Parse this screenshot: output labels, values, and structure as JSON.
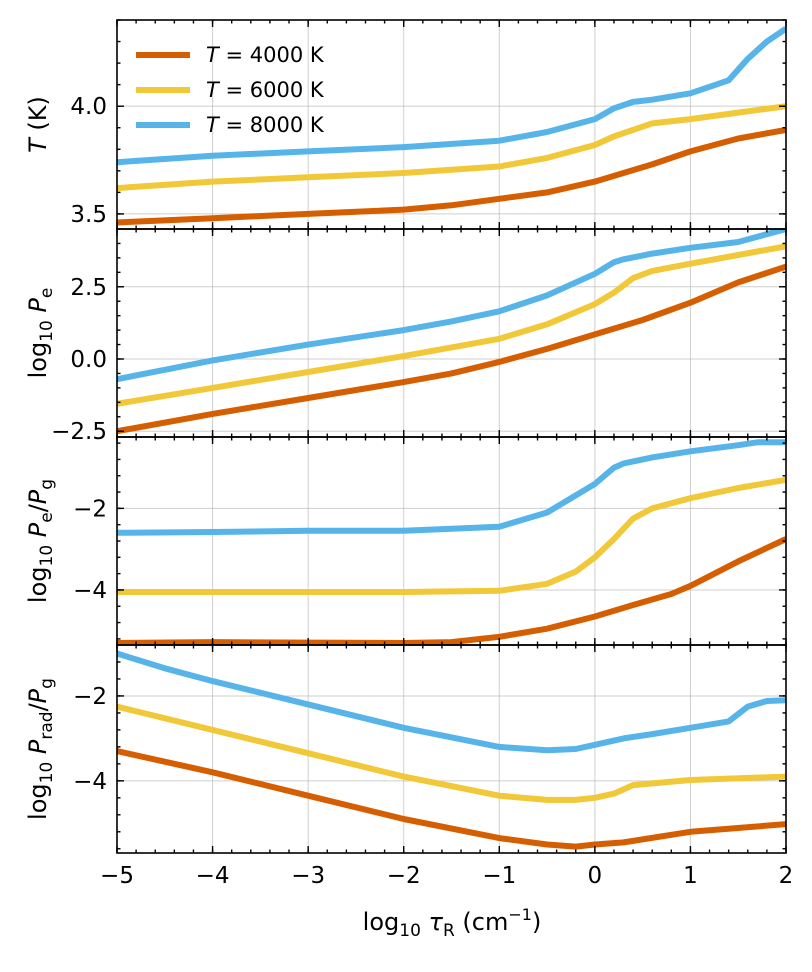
{
  "chart_data": {
    "type": "line",
    "x_label": {
      "prefix": "log",
      "sub": "10",
      "sym": "τ",
      "symsub": "R",
      "unit_pre": "(cm",
      "unit_sup": "−1",
      "unit_post": ")"
    },
    "xlim": [
      -5,
      2
    ],
    "xticks": [
      -5,
      -4,
      -3,
      -2,
      -1,
      0,
      1,
      2
    ],
    "xtick_labels": [
      "−5",
      "−4",
      "−3",
      "−2",
      "−1",
      "0",
      "1",
      "2"
    ],
    "grid": true,
    "legend": {
      "placement": "top-left",
      "entries": [
        {
          "var": "T",
          "text": " = 4000 K",
          "color": "#d55e00"
        },
        {
          "var": "T",
          "text": " = 6000 K",
          "color": "#f0c838"
        },
        {
          "var": "T",
          "text": " = 8000 K",
          "color": "#56b4e9"
        }
      ]
    },
    "panels": [
      {
        "ylabel": {
          "parts": [
            {
              "t": "T",
              "i": true
            },
            {
              "t": " (K)"
            }
          ]
        },
        "ylim": [
          3.43,
          4.4
        ],
        "yticks": [
          3.5,
          4.0
        ],
        "ytick_labels": [
          "3.5",
          "4.0"
        ],
        "series": [
          {
            "color": "#d55e00",
            "x": [
              -5,
              -4,
              -3,
              -2,
              -1.5,
              -1,
              -0.5,
              0,
              0.3,
              0.6,
              1,
              1.5,
              2
            ],
            "y": [
              3.46,
              3.48,
              3.5,
              3.52,
              3.54,
              3.57,
              3.6,
              3.65,
              3.69,
              3.73,
              3.79,
              3.85,
              3.89
            ]
          },
          {
            "color": "#f0c838",
            "x": [
              -5,
              -4,
              -3,
              -2,
              -1,
              -0.5,
              0,
              0.2,
              0.4,
              0.6,
              1,
              1.5,
              2
            ],
            "y": [
              3.62,
              3.65,
              3.67,
              3.69,
              3.72,
              3.76,
              3.82,
              3.86,
              3.89,
              3.92,
              3.94,
              3.97,
              4.0
            ]
          },
          {
            "color": "#56b4e9",
            "x": [
              -5,
              -4,
              -3,
              -2,
              -1,
              -0.5,
              0,
              0.2,
              0.4,
              0.6,
              1,
              1.4,
              1.6,
              1.8,
              2
            ],
            "y": [
              3.74,
              3.77,
              3.79,
              3.81,
              3.84,
              3.88,
              3.94,
              3.99,
              4.02,
              4.03,
              4.06,
              4.12,
              4.22,
              4.3,
              4.36
            ]
          }
        ]
      },
      {
        "ylabel": {
          "parts": [
            {
              "t": "log"
            },
            {
              "t": "10",
              "sub": true
            },
            {
              "t": " "
            },
            {
              "t": "P",
              "i": true
            },
            {
              "t": "e",
              "sub": true
            }
          ]
        },
        "ylim": [
          -2.7,
          4.5
        ],
        "yticks": [
          -2.5,
          0.0,
          2.5
        ],
        "ytick_labels": [
          "−2.5",
          "0.0",
          "2.5"
        ],
        "series": [
          {
            "color": "#d55e00",
            "x": [
              -5,
              -4,
              -3,
              -2,
              -1.5,
              -1,
              -0.5,
              0,
              0.5,
              1,
              1.5,
              2
            ],
            "y": [
              -2.5,
              -1.9,
              -1.35,
              -0.8,
              -0.5,
              -0.1,
              0.35,
              0.85,
              1.35,
              1.95,
              2.65,
              3.2
            ]
          },
          {
            "color": "#f0c838",
            "x": [
              -5,
              -4,
              -3,
              -2,
              -1,
              -0.5,
              0,
              0.2,
              0.4,
              0.6,
              1,
              1.5,
              2
            ],
            "y": [
              -1.55,
              -1.0,
              -0.45,
              0.1,
              0.7,
              1.2,
              1.9,
              2.3,
              2.8,
              3.05,
              3.3,
              3.6,
              3.9
            ]
          },
          {
            "color": "#56b4e9",
            "x": [
              -5,
              -4,
              -3,
              -2,
              -1.5,
              -1,
              -0.5,
              0,
              0.2,
              0.3,
              0.6,
              1,
              1.5,
              2
            ],
            "y": [
              -0.7,
              -0.05,
              0.5,
              1.0,
              1.3,
              1.65,
              2.2,
              2.95,
              3.35,
              3.45,
              3.65,
              3.85,
              4.05,
              4.5
            ]
          }
        ]
      },
      {
        "ylabel": {
          "parts": [
            {
              "t": "log"
            },
            {
              "t": "10",
              "sub": true
            },
            {
              "t": " "
            },
            {
              "t": "P",
              "i": true
            },
            {
              "t": "e",
              "sub": true
            },
            {
              "t": "/"
            },
            {
              "t": "P",
              "i": true
            },
            {
              "t": "g",
              "sub": true
            }
          ]
        },
        "ylim": [
          -5.35,
          -0.25
        ],
        "yticks": [
          -4,
          -2
        ],
        "ytick_labels": [
          "−4",
          "−2"
        ],
        "series": [
          {
            "color": "#d55e00",
            "x": [
              -5,
              -4,
              -3,
              -2,
              -1.5,
              -1,
              -0.5,
              0,
              0.5,
              0.8,
              1,
              1.5,
              2
            ],
            "y": [
              -5.3,
              -5.28,
              -5.29,
              -5.3,
              -5.28,
              -5.15,
              -4.95,
              -4.65,
              -4.3,
              -4.1,
              -3.9,
              -3.3,
              -2.75
            ]
          },
          {
            "color": "#f0c838",
            "x": [
              -5,
              -4,
              -3,
              -2,
              -1,
              -0.5,
              -0.2,
              0,
              0.2,
              0.4,
              0.6,
              1,
              1.5,
              2
            ],
            "y": [
              -4.05,
              -4.05,
              -4.05,
              -4.05,
              -4.02,
              -3.85,
              -3.55,
              -3.2,
              -2.75,
              -2.25,
              -2.0,
              -1.75,
              -1.5,
              -1.3
            ]
          },
          {
            "color": "#56b4e9",
            "x": [
              -5,
              -4,
              -3,
              -2,
              -1,
              -0.5,
              0,
              0.2,
              0.3,
              0.6,
              1,
              1.5,
              1.7,
              2
            ],
            "y": [
              -2.6,
              -2.58,
              -2.55,
              -2.55,
              -2.45,
              -2.1,
              -1.4,
              -1.0,
              -0.9,
              -0.75,
              -0.6,
              -0.45,
              -0.38,
              -0.38
            ]
          }
        ]
      },
      {
        "ylabel": {
          "parts": [
            {
              "t": "log"
            },
            {
              "t": "10",
              "sub": true
            },
            {
              "t": " "
            },
            {
              "t": "P",
              "i": true
            },
            {
              "t": "rad",
              "sub": true
            },
            {
              "t": "/"
            },
            {
              "t": "P",
              "i": true
            },
            {
              "t": "g",
              "sub": true
            }
          ]
        },
        "ylim": [
          -5.7,
          -0.8
        ],
        "yticks": [
          -4,
          -2
        ],
        "ytick_labels": [
          "−4",
          "−2"
        ],
        "series": [
          {
            "color": "#d55e00",
            "x": [
              -5,
              -4,
              -3,
              -2,
              -1,
              -0.5,
              -0.2,
              0,
              0.3,
              1,
              2
            ],
            "y": [
              -3.3,
              -3.8,
              -4.35,
              -4.9,
              -5.35,
              -5.5,
              -5.55,
              -5.5,
              -5.45,
              -5.2,
              -5.02
            ]
          },
          {
            "color": "#f0c838",
            "x": [
              -5,
              -4,
              -3,
              -2,
              -1,
              -0.5,
              -0.2,
              0,
              0.2,
              0.4,
              1,
              2
            ],
            "y": [
              -2.25,
              -2.8,
              -3.35,
              -3.9,
              -4.35,
              -4.45,
              -4.45,
              -4.4,
              -4.3,
              -4.1,
              -3.98,
              -3.9
            ]
          },
          {
            "color": "#56b4e9",
            "x": [
              -5,
              -4.5,
              -4,
              -3,
              -2,
              -1,
              -0.5,
              -0.2,
              0,
              0.3,
              0.6,
              1,
              1.4,
              1.6,
              1.8,
              2
            ],
            "y": [
              -1.0,
              -1.35,
              -1.65,
              -2.2,
              -2.75,
              -3.2,
              -3.28,
              -3.25,
              -3.15,
              -3.0,
              -2.9,
              -2.75,
              -2.6,
              -2.25,
              -2.12,
              -2.1
            ]
          }
        ]
      }
    ]
  }
}
